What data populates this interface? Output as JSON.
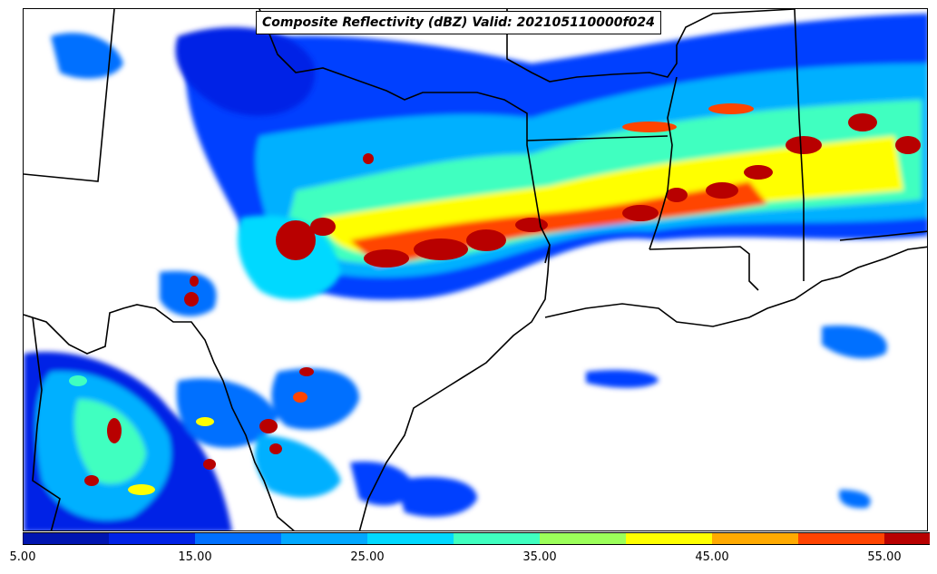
{
  "title": "Composite Reflectivity (dBZ) Valid: 202105110000f024",
  "colorbar": {
    "colors": [
      "#0015b0",
      "#0022e6",
      "#0070ff",
      "#00a8ff",
      "#00d9ff",
      "#40ffc0",
      "#9cff5a",
      "#ffff00",
      "#ffaa00",
      "#ff4400",
      "#b80000"
    ],
    "extend_color": "#6e0000",
    "ticks": [
      "5.00",
      "15.00",
      "25.00",
      "35.00",
      "45.00",
      "55.00"
    ]
  },
  "map": {
    "background": "#ffffff",
    "boundary_color": "#000000"
  }
}
